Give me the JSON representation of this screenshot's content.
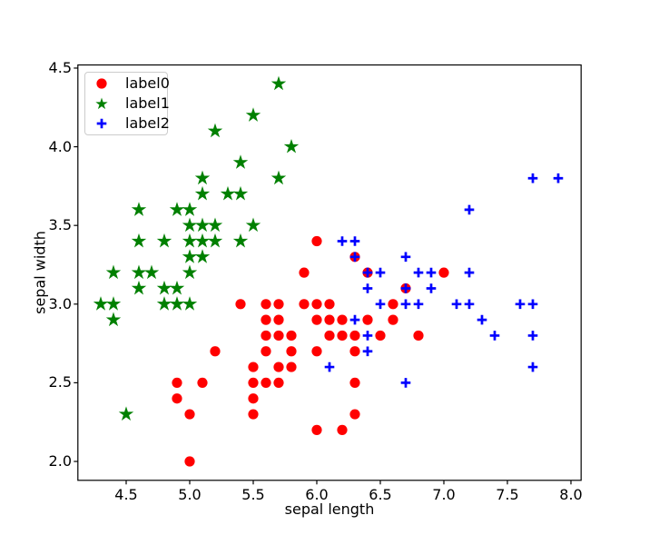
{
  "figure": {
    "background": "#ffffff"
  },
  "axes": {
    "xlabel": "sepal length",
    "ylabel": "sepal width",
    "x_tick_labels": [
      "4.5",
      "5.0",
      "5.5",
      "6.0",
      "6.5",
      "7.0",
      "7.5",
      "8.0"
    ],
    "y_tick_labels": [
      "2.0",
      "2.5",
      "3.0",
      "3.5",
      "4.0",
      "4.5"
    ]
  },
  "legend": {
    "items": [
      {
        "label": "label0",
        "marker": "circle",
        "color": "#ff0000"
      },
      {
        "label": "label1",
        "marker": "star",
        "color": "#008000"
      },
      {
        "label": "label2",
        "marker": "plus",
        "color": "#0000ff"
      }
    ]
  },
  "chart_data": {
    "type": "scatter",
    "title": "",
    "xlabel": "sepal length",
    "ylabel": "sepal width",
    "xlim": [
      4.12,
      8.08
    ],
    "ylim": [
      1.88,
      4.52
    ],
    "x_ticks": [
      4.5,
      5.0,
      5.5,
      6.0,
      6.5,
      7.0,
      7.5,
      8.0
    ],
    "y_ticks": [
      2.0,
      2.5,
      3.0,
      3.5,
      4.0,
      4.5
    ],
    "grid": false,
    "legend_position": "upper left",
    "series": [
      {
        "name": "label0",
        "marker": "circle",
        "color": "#ff0000",
        "points": [
          [
            5.0,
            2.0
          ],
          [
            6.0,
            2.2
          ],
          [
            6.2,
            2.2
          ],
          [
            5.0,
            2.3
          ],
          [
            5.5,
            2.3
          ],
          [
            6.3,
            2.3
          ],
          [
            4.9,
            2.4
          ],
          [
            5.5,
            2.4
          ],
          [
            4.9,
            2.5
          ],
          [
            5.1,
            2.5
          ],
          [
            5.5,
            2.5
          ],
          [
            5.6,
            2.5
          ],
          [
            5.7,
            2.5
          ],
          [
            6.3,
            2.5
          ],
          [
            5.5,
            2.6
          ],
          [
            5.7,
            2.6
          ],
          [
            5.8,
            2.6
          ],
          [
            5.2,
            2.7
          ],
          [
            5.6,
            2.7
          ],
          [
            5.8,
            2.7
          ],
          [
            6.0,
            2.7
          ],
          [
            6.3,
            2.7
          ],
          [
            5.6,
            2.8
          ],
          [
            5.7,
            2.8
          ],
          [
            5.8,
            2.8
          ],
          [
            6.1,
            2.8
          ],
          [
            6.2,
            2.8
          ],
          [
            6.3,
            2.8
          ],
          [
            6.5,
            2.8
          ],
          [
            6.8,
            2.8
          ],
          [
            5.6,
            2.9
          ],
          [
            5.7,
            2.9
          ],
          [
            6.0,
            2.9
          ],
          [
            6.1,
            2.9
          ],
          [
            6.2,
            2.9
          ],
          [
            6.4,
            2.9
          ],
          [
            6.6,
            2.9
          ],
          [
            5.4,
            3.0
          ],
          [
            5.6,
            3.0
          ],
          [
            5.7,
            3.0
          ],
          [
            5.9,
            3.0
          ],
          [
            6.0,
            3.0
          ],
          [
            6.1,
            3.0
          ],
          [
            6.6,
            3.0
          ],
          [
            6.7,
            3.1
          ],
          [
            5.9,
            3.2
          ],
          [
            6.4,
            3.2
          ],
          [
            7.0,
            3.2
          ],
          [
            6.3,
            3.3
          ],
          [
            6.0,
            3.4
          ]
        ]
      },
      {
        "name": "label1",
        "marker": "star",
        "color": "#008000",
        "points": [
          [
            4.5,
            2.3
          ],
          [
            4.4,
            2.9
          ],
          [
            4.3,
            3.0
          ],
          [
            4.4,
            3.0
          ],
          [
            4.8,
            3.0
          ],
          [
            4.9,
            3.0
          ],
          [
            5.0,
            3.0
          ],
          [
            4.6,
            3.1
          ],
          [
            4.8,
            3.1
          ],
          [
            4.9,
            3.1
          ],
          [
            4.4,
            3.2
          ],
          [
            4.6,
            3.2
          ],
          [
            4.7,
            3.2
          ],
          [
            5.0,
            3.2
          ],
          [
            5.0,
            3.3
          ],
          [
            5.1,
            3.3
          ],
          [
            4.6,
            3.4
          ],
          [
            4.8,
            3.4
          ],
          [
            5.0,
            3.4
          ],
          [
            5.1,
            3.4
          ],
          [
            5.2,
            3.4
          ],
          [
            5.4,
            3.4
          ],
          [
            5.0,
            3.5
          ],
          [
            5.1,
            3.5
          ],
          [
            5.2,
            3.5
          ],
          [
            5.5,
            3.5
          ],
          [
            4.6,
            3.6
          ],
          [
            4.9,
            3.6
          ],
          [
            5.0,
            3.6
          ],
          [
            5.1,
            3.7
          ],
          [
            5.3,
            3.7
          ],
          [
            5.4,
            3.7
          ],
          [
            5.1,
            3.8
          ],
          [
            5.7,
            3.8
          ],
          [
            5.4,
            3.9
          ],
          [
            5.8,
            4.0
          ],
          [
            5.2,
            4.1
          ],
          [
            5.5,
            4.2
          ],
          [
            5.7,
            4.4
          ]
        ]
      },
      {
        "name": "label2",
        "marker": "plus",
        "color": "#0000ff",
        "points": [
          [
            6.7,
            2.5
          ],
          [
            6.1,
            2.6
          ],
          [
            7.7,
            2.6
          ],
          [
            6.4,
            2.7
          ],
          [
            6.4,
            2.8
          ],
          [
            7.4,
            2.8
          ],
          [
            7.7,
            2.8
          ],
          [
            6.3,
            2.9
          ],
          [
            7.3,
            2.9
          ],
          [
            6.5,
            3.0
          ],
          [
            6.7,
            3.0
          ],
          [
            6.8,
            3.0
          ],
          [
            7.1,
            3.0
          ],
          [
            7.2,
            3.0
          ],
          [
            7.6,
            3.0
          ],
          [
            7.7,
            3.0
          ],
          [
            6.4,
            3.1
          ],
          [
            6.7,
            3.1
          ],
          [
            6.9,
            3.1
          ],
          [
            6.4,
            3.2
          ],
          [
            6.5,
            3.2
          ],
          [
            6.8,
            3.2
          ],
          [
            6.9,
            3.2
          ],
          [
            7.2,
            3.2
          ],
          [
            6.3,
            3.3
          ],
          [
            6.7,
            3.3
          ],
          [
            6.2,
            3.4
          ],
          [
            6.3,
            3.4
          ],
          [
            7.2,
            3.6
          ],
          [
            7.7,
            3.8
          ],
          [
            7.9,
            3.8
          ]
        ]
      }
    ]
  }
}
